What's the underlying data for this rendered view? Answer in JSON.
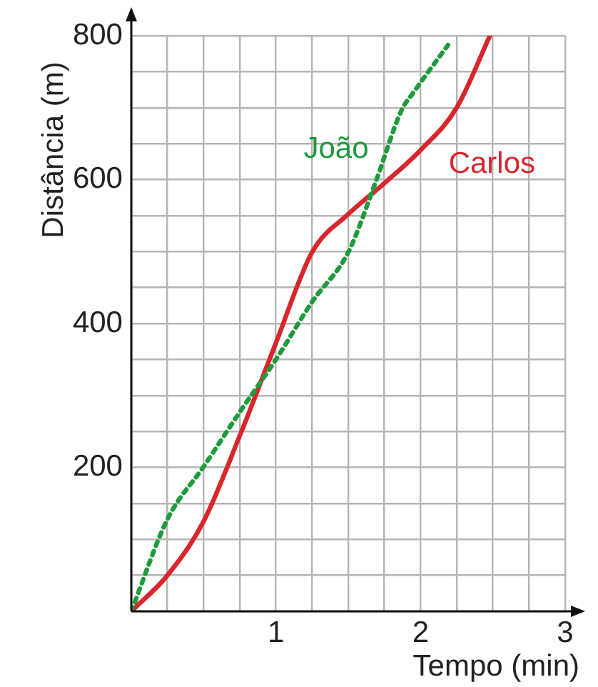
{
  "chart_data": {
    "type": "line",
    "xlabel": "Tempo (min)",
    "ylabel": "Distância (m)",
    "xlim": [
      0,
      3
    ],
    "ylim": [
      0,
      800
    ],
    "xticks": [
      {
        "value": 0,
        "label": null
      },
      {
        "value": 0.25,
        "label": null
      },
      {
        "value": 0.5,
        "label": null
      },
      {
        "value": 0.75,
        "label": null
      },
      1,
      {
        "value": 1.25,
        "label": null
      },
      {
        "value": 1.5,
        "label": null
      },
      {
        "value": 1.75,
        "label": null
      },
      2,
      {
        "value": 2.25,
        "label": null
      },
      {
        "value": 2.5,
        "label": null
      },
      {
        "value": 2.75,
        "label": null
      },
      3
    ],
    "yticks": [
      {
        "value": 0,
        "label": null
      },
      {
        "value": 50,
        "label": null
      },
      {
        "value": 100,
        "label": null
      },
      {
        "value": 150,
        "label": null
      },
      200,
      {
        "value": 250,
        "label": null
      },
      {
        "value": 300,
        "label": null
      },
      {
        "value": 350,
        "label": null
      },
      400,
      {
        "value": 450,
        "label": null
      },
      {
        "value": 500,
        "label": null
      },
      {
        "value": 550,
        "label": null
      },
      600,
      {
        "value": 650,
        "label": null
      },
      {
        "value": 700,
        "label": null
      },
      {
        "value": 750,
        "label": null
      },
      800
    ],
    "grid": true,
    "legend": false,
    "marker": "none",
    "series": [
      {
        "name": "João",
        "color": "#1f9a3c",
        "line_style": "dotted",
        "x": [
          0,
          0.25,
          0.5,
          0.75,
          1,
          1.25,
          1.5,
          1.69,
          1.87,
          1.94,
          2.19
        ],
        "values": [
          0,
          128,
          201,
          277,
          350,
          430,
          499,
          597,
          697,
          718,
          787
        ]
      },
      {
        "name": "Carlos",
        "color": "#d8262c",
        "line_style": "solid",
        "x": [
          0,
          0.25,
          0.5,
          0.75,
          1,
          1.25,
          1.5,
          1.75,
          2,
          2.25,
          2.48
        ],
        "values": [
          0,
          50,
          125,
          244,
          373,
          499,
          552,
          595,
          641,
          700,
          800
        ]
      }
    ]
  }
}
